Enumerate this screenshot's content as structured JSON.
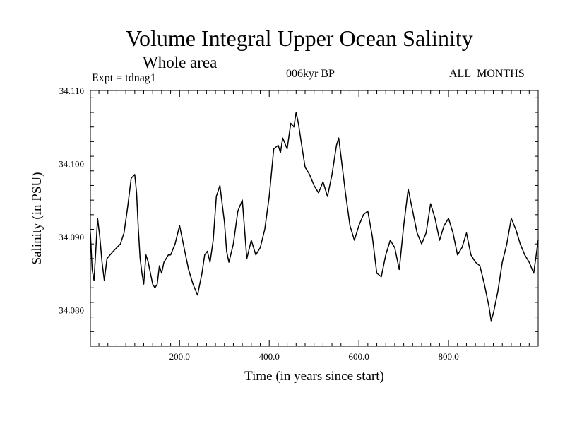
{
  "chart_data": {
    "type": "line",
    "title": "Volume Integral Upper Ocean Salinity",
    "subtitle": "Whole area",
    "left_label": "Expt = tdnag1",
    "center_label": "006kyr BP",
    "right_label": "ALL_MONTHS",
    "xlabel": "Time (in years since start)",
    "ylabel": "Salinity (in PSU)",
    "xlim": [
      1,
      1000
    ],
    "ylim": [
      34.075,
      34.11
    ],
    "x_ticks": [
      200,
      400,
      600,
      800
    ],
    "x_tick_labels": [
      "200.0",
      "400.0",
      "600.0",
      "800.0"
    ],
    "y_ticks": [
      34.08,
      34.09,
      34.1,
      34.11
    ],
    "y_tick_labels": [
      "34.080",
      "34.090",
      "34.100",
      "34.110"
    ],
    "grid": false,
    "series": [
      {
        "name": "Salinity",
        "color": "#000000",
        "x": [
          1,
          5,
          9,
          13,
          17,
          22,
          27,
          32,
          38,
          45,
          52,
          60,
          68,
          76,
          84,
          92,
          100,
          104,
          108,
          112,
          116,
          120,
          125,
          130,
          135,
          140,
          145,
          150,
          155,
          160,
          165,
          170,
          175,
          180,
          190,
          200,
          210,
          220,
          230,
          240,
          250,
          256,
          262,
          268,
          275,
          282,
          290,
          296,
          300,
          305,
          310,
          320,
          330,
          340,
          350,
          360,
          370,
          380,
          390,
          400,
          410,
          420,
          425,
          430,
          440,
          448,
          455,
          460,
          465,
          470,
          480,
          490,
          500,
          510,
          520,
          530,
          540,
          550,
          555,
          560,
          570,
          580,
          590,
          600,
          610,
          620,
          630,
          640,
          650,
          660,
          670,
          680,
          690,
          700,
          710,
          720,
          730,
          740,
          750,
          760,
          770,
          780,
          790,
          800,
          810,
          820,
          830,
          840,
          850,
          860,
          870,
          880,
          885,
          890,
          895,
          900,
          910,
          920,
          930,
          940,
          950,
          960,
          970,
          980,
          990,
          1000
        ],
        "values": [
          34.0905,
          34.0855,
          34.084,
          34.088,
          34.0925,
          34.09,
          34.0865,
          34.084,
          34.087,
          34.0875,
          34.088,
          34.0885,
          34.089,
          34.0905,
          34.094,
          34.098,
          34.0985,
          34.096,
          34.091,
          34.087,
          34.085,
          34.0835,
          34.0875,
          34.0865,
          34.085,
          34.0835,
          34.083,
          34.0835,
          34.086,
          34.085,
          34.0865,
          34.087,
          34.0875,
          34.0875,
          34.089,
          34.0915,
          34.0885,
          34.0855,
          34.0835,
          34.082,
          34.085,
          34.0875,
          34.088,
          34.0865,
          34.0895,
          34.0955,
          34.097,
          34.094,
          34.092,
          34.088,
          34.0865,
          34.089,
          34.0935,
          34.095,
          34.087,
          34.0895,
          34.0875,
          34.0885,
          34.091,
          34.0955,
          34.102,
          34.1025,
          34.1015,
          34.1035,
          34.102,
          34.1055,
          34.105,
          34.107,
          34.1055,
          34.1035,
          34.0995,
          34.0985,
          34.097,
          34.096,
          34.0975,
          34.0955,
          34.0985,
          34.1025,
          34.1035,
          34.101,
          34.096,
          34.0915,
          34.0895,
          34.0915,
          34.093,
          34.0935,
          34.09,
          34.085,
          34.0845,
          34.0875,
          34.0895,
          34.0885,
          34.0855,
          34.0915,
          34.0965,
          34.0935,
          34.0905,
          34.089,
          34.0905,
          34.0945,
          34.0925,
          34.0895,
          34.0915,
          34.0925,
          34.0905,
          34.0875,
          34.0885,
          34.0905,
          34.0875,
          34.0865,
          34.086,
          34.0835,
          34.082,
          34.0805,
          34.0785,
          34.0795,
          34.0825,
          34.0865,
          34.089,
          34.0925,
          34.091,
          34.089,
          34.0875,
          34.0865,
          34.085,
          34.0895
        ]
      }
    ]
  }
}
